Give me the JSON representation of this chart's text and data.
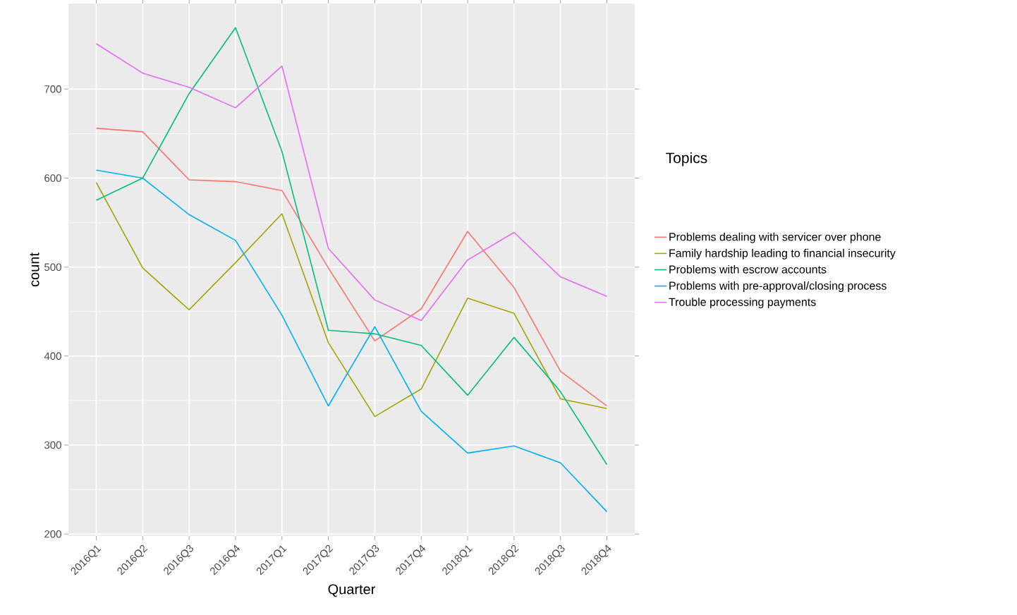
{
  "chart_data": {
    "type": "line",
    "xlabel": "Quarter",
    "ylabel": "count",
    "legend_title": "Topics",
    "legend": "right",
    "grid": true,
    "categories": [
      "2016Q1",
      "2016Q2",
      "2016Q3",
      "2016Q4",
      "2017Q1",
      "2017Q2",
      "2017Q3",
      "2017Q4",
      "2018Q1",
      "2018Q2",
      "2018Q3",
      "2018Q4"
    ],
    "ylim": [
      197.8,
      796.2
    ],
    "yticks": [
      200,
      300,
      400,
      500,
      600,
      700
    ],
    "series": [
      {
        "name": "Problems dealing with servicer over phone",
        "color": "#f8766d",
        "values": [
          656,
          652,
          598,
          596,
          586,
          499,
          417,
          453,
          540,
          477,
          383,
          344
        ]
      },
      {
        "name": "Family hardship leading to financial insecurity",
        "color": "#a3a500",
        "values": [
          595,
          499,
          452,
          505,
          560,
          415,
          332,
          363,
          465,
          448,
          352,
          341
        ]
      },
      {
        "name": "Problems with escrow accounts",
        "color": "#00bf7d",
        "values": [
          575,
          600,
          695,
          769,
          630,
          429,
          425,
          412,
          356,
          421,
          360,
          278
        ]
      },
      {
        "name": "Problems with pre-approval/closing process",
        "color": "#00b0f6",
        "values": [
          609,
          600,
          559,
          530,
          446,
          344,
          433,
          338,
          291,
          299,
          280,
          225
        ]
      },
      {
        "name": "Trouble processing payments",
        "color": "#e76bf3",
        "values": [
          751,
          718,
          702,
          679,
          726,
          521,
          463,
          440,
          508,
          539,
          489,
          467
        ]
      }
    ]
  }
}
